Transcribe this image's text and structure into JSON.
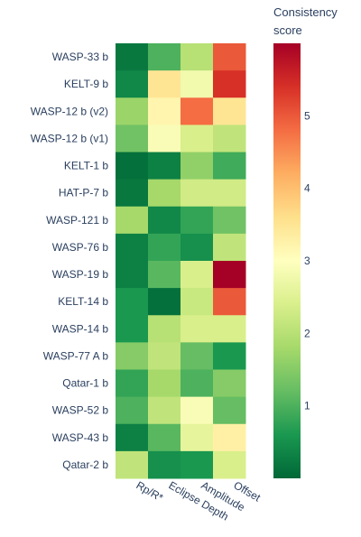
{
  "chart_data": {
    "type": "heatmap",
    "colorbar_title": [
      "Consistency",
      "score"
    ],
    "colorscale": "RdYlGn (reversed)",
    "zmin": 0,
    "zmax": 6,
    "colorbar_ticks": [
      1,
      2,
      3,
      4,
      5
    ],
    "x_categories": [
      "Rp/R*",
      "Eclipse Depth",
      "Amplitude",
      "Offset"
    ],
    "y_categories": [
      "WASP-33 b",
      "KELT-9 b",
      "WASP-12 b (v2)",
      "WASP-12 b (v1)",
      "KELT-1 b",
      "HAT-P-7 b",
      "WASP-121 b",
      "WASP-76 b",
      "WASP-19 b",
      "KELT-14 b",
      "WASP-14 b",
      "WASP-77 A b",
      "Qatar-1 b",
      "WASP-52 b",
      "WASP-43 b",
      "Qatar-2 b"
    ],
    "z": [
      [
        0.2,
        1.0,
        2.0,
        5.0
      ],
      [
        0.4,
        3.5,
        2.8,
        5.4
      ],
      [
        1.7,
        3.2,
        4.8,
        3.5
      ],
      [
        1.3,
        2.9,
        2.4,
        2.1
      ],
      [
        0.1,
        0.3,
        1.6,
        0.9
      ],
      [
        0.2,
        1.8,
        2.3,
        2.3
      ],
      [
        1.8,
        0.4,
        0.8,
        1.3
      ],
      [
        0.3,
        0.8,
        0.5,
        2.1
      ],
      [
        0.3,
        1.1,
        2.4,
        6.0
      ],
      [
        0.6,
        0.1,
        2.2,
        5.0
      ],
      [
        0.6,
        2.0,
        2.4,
        2.4
      ],
      [
        1.5,
        2.1,
        1.2,
        0.6
      ],
      [
        0.8,
        1.8,
        1.0,
        1.5
      ],
      [
        1.0,
        2.1,
        2.9,
        1.2
      ],
      [
        0.3,
        1.1,
        2.6,
        3.3
      ],
      [
        2.1,
        0.5,
        0.6,
        2.4
      ]
    ]
  }
}
